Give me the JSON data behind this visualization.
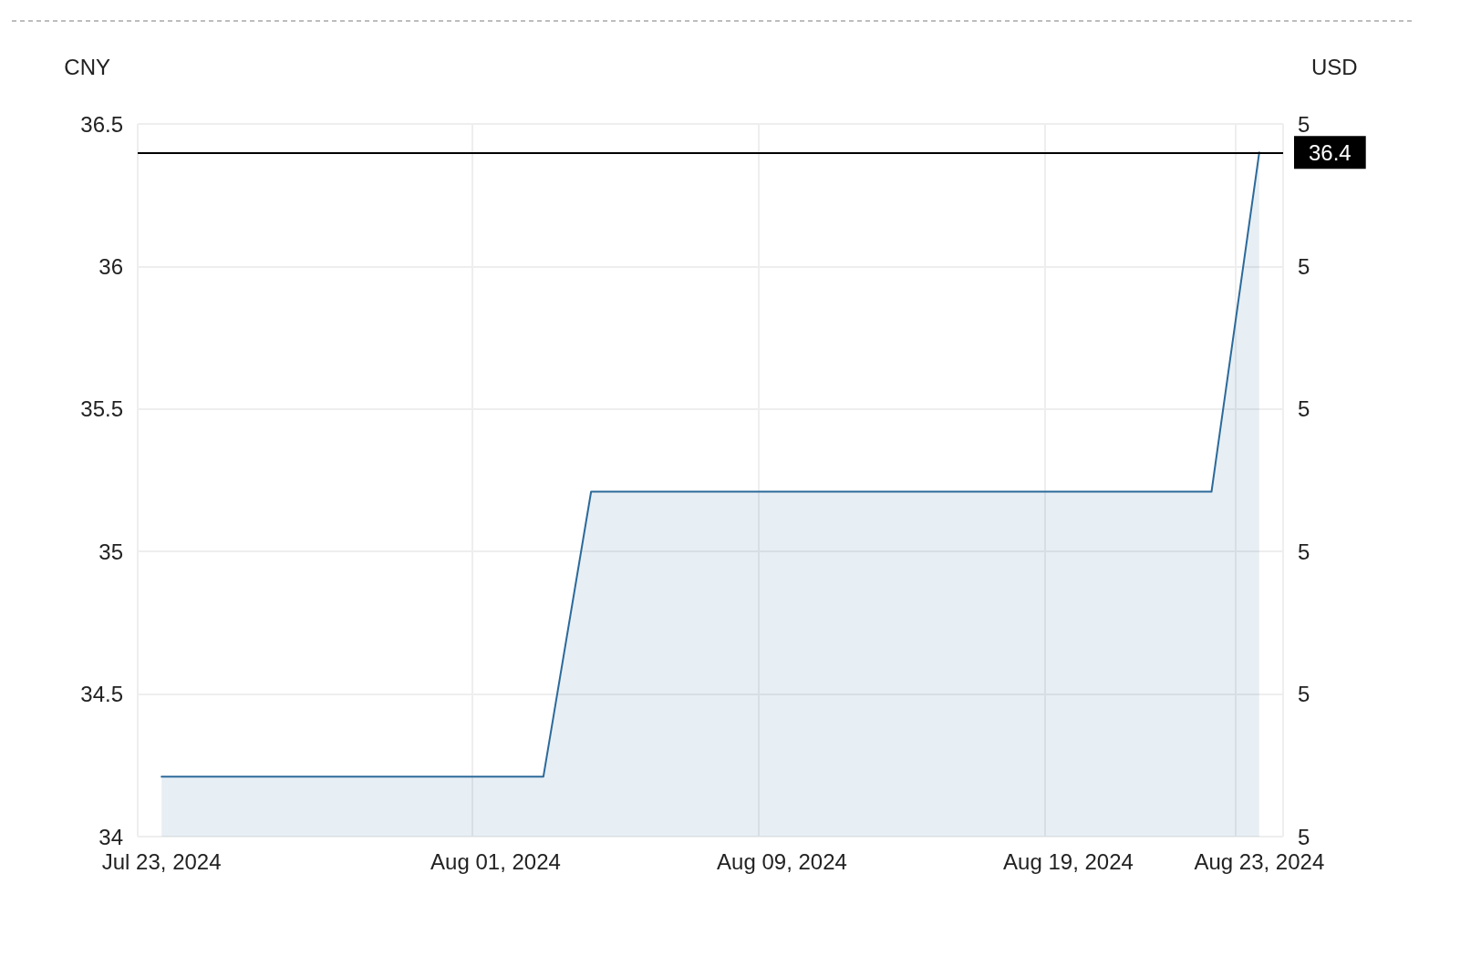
{
  "chart_data": {
    "type": "area",
    "categories": [
      "Jul 23, 2024",
      null,
      null,
      null,
      null,
      null,
      null,
      "Aug 01, 2024",
      null,
      null,
      null,
      null,
      null,
      "Aug 09, 2024",
      null,
      null,
      null,
      null,
      null,
      "Aug 19, 2024",
      null,
      null,
      null,
      "Aug 23, 2024"
    ],
    "series": [
      {
        "color": "#2c6a9a",
        "values": [
          34.21,
          34.21,
          34.21,
          34.21,
          34.21,
          34.21,
          34.21,
          34.21,
          34.21,
          35.21,
          35.21,
          35.21,
          35.21,
          35.21,
          35.21,
          35.21,
          35.21,
          35.21,
          35.21,
          35.21,
          35.21,
          35.21,
          35.21,
          36.4
        ]
      }
    ],
    "ylabel": "CNY",
    "y2label": "USD",
    "ylim": [
      34,
      36.5
    ],
    "yticks": [
      34,
      34.5,
      35,
      35.5,
      36,
      36.5
    ],
    "y2_categories": [
      "5",
      "5",
      "5",
      "5",
      "5",
      "5"
    ],
    "ref_lines": [
      {
        "axis": "y",
        "value": 36.4,
        "label": "36.4",
        "color": "#000000"
      }
    ],
    "grid": true,
    "marker": "none",
    "line_style": "solid"
  }
}
